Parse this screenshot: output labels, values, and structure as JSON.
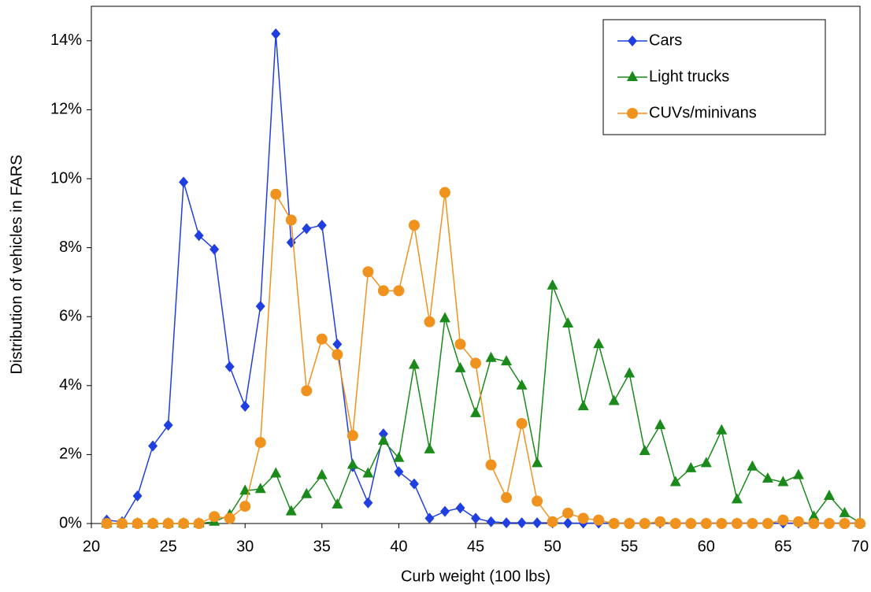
{
  "chart_data": {
    "type": "line",
    "x_label": "Curb weight (100 lbs)",
    "y_label": "Distribution of vehicles in FARS",
    "x": [
      21,
      22,
      23,
      24,
      25,
      26,
      27,
      28,
      29,
      30,
      31,
      32,
      33,
      34,
      35,
      36,
      37,
      38,
      39,
      40,
      41,
      42,
      43,
      44,
      45,
      46,
      47,
      48,
      49,
      50,
      51,
      52,
      53,
      54,
      55,
      56,
      57,
      58,
      59,
      60,
      61,
      62,
      63,
      64,
      65,
      66,
      67,
      68,
      69,
      70
    ],
    "series": [
      {
        "name": "Cars",
        "color": "#1f3fe0",
        "marker": "diamond",
        "values": [
          0.1,
          0.05,
          0.8,
          2.25,
          2.85,
          9.9,
          8.35,
          7.95,
          4.55,
          3.4,
          6.3,
          14.2,
          8.15,
          8.55,
          8.65,
          5.2,
          1.65,
          0.6,
          2.6,
          1.5,
          1.15,
          0.15,
          0.35,
          0.45,
          0.15,
          0.05,
          0.02,
          0.02,
          0.02,
          0.02,
          0.01,
          0.01,
          0.01,
          0.01,
          0.01,
          0.01,
          0.01,
          0.01,
          0.01,
          0.01,
          0.01,
          0.01,
          0.01,
          0.01,
          0.01,
          0.01,
          0.01,
          0.01,
          0.01,
          0.01
        ]
      },
      {
        "name": "Light trucks",
        "color": "#1a8a1a",
        "marker": "triangle",
        "values": [
          0,
          0,
          0,
          0,
          0,
          0,
          0,
          0.05,
          0.25,
          0.95,
          1.0,
          1.45,
          0.35,
          0.85,
          1.4,
          0.55,
          1.7,
          1.45,
          2.4,
          1.9,
          4.6,
          2.15,
          5.95,
          4.5,
          3.2,
          4.8,
          4.7,
          4.0,
          1.75,
          6.9,
          5.8,
          3.4,
          5.2,
          3.55,
          4.35,
          2.1,
          2.85,
          1.2,
          1.6,
          1.75,
          2.7,
          0.7,
          1.65,
          1.3,
          1.2,
          1.4,
          0.2,
          0.8,
          0.3,
          0.02
        ]
      },
      {
        "name": "CUVs/minivans",
        "color": "#f0921e",
        "marker": "circle",
        "values": [
          0,
          0,
          0,
          0,
          0,
          0,
          0,
          0.2,
          0.15,
          0.5,
          2.35,
          9.55,
          8.8,
          3.85,
          5.35,
          4.9,
          2.55,
          7.3,
          6.75,
          6.75,
          8.65,
          5.85,
          9.6,
          5.2,
          4.65,
          1.7,
          0.75,
          2.9,
          0.65,
          0.05,
          0.3,
          0.15,
          0.1,
          0,
          0,
          0,
          0.05,
          0,
          0,
          0,
          0,
          0,
          0,
          0,
          0.1,
          0.05,
          0,
          0,
          0,
          0
        ]
      }
    ],
    "xlim": [
      20,
      70
    ],
    "xticks": [
      20,
      25,
      30,
      35,
      40,
      45,
      50,
      55,
      60,
      65,
      70
    ],
    "ylim": [
      0,
      15
    ],
    "yticks": [
      {
        "value": 0,
        "label": "0%"
      },
      {
        "value": 2,
        "label": "2%"
      },
      {
        "value": 4,
        "label": "4%"
      },
      {
        "value": 6,
        "label": "6%"
      },
      {
        "value": 8,
        "label": "8%"
      },
      {
        "value": 10,
        "label": "10%"
      },
      {
        "value": 12,
        "label": "12%"
      },
      {
        "value": 14,
        "label": "14%"
      }
    ],
    "grid": false,
    "legend": "top-right"
  }
}
